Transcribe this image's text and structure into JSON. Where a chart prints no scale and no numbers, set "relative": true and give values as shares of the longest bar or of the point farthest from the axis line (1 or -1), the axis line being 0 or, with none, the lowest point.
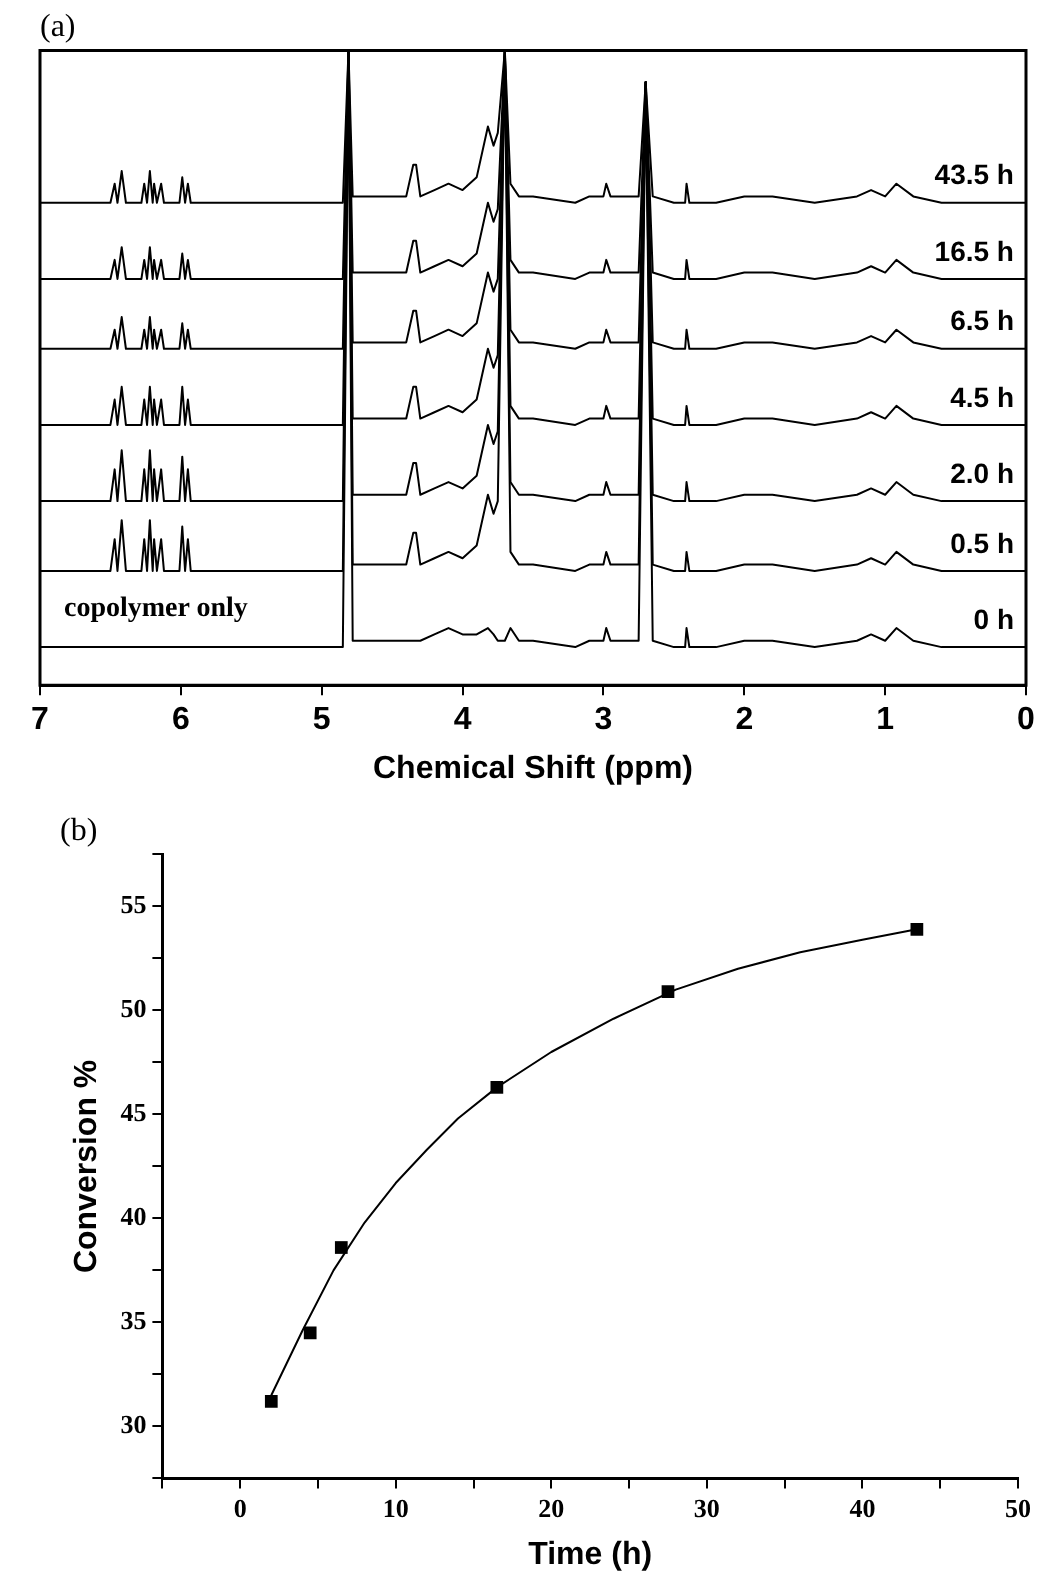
{
  "chart_data": [
    {
      "type": "line",
      "title": "(a)",
      "xlabel": "Chemical Shift (ppm)",
      "relative": true,
      "marker": "none",
      "tick_labels": "x",
      "xlim": [
        7,
        0
      ],
      "xticks": [
        7,
        6,
        5,
        4,
        3,
        2,
        1,
        0
      ],
      "x": [
        7,
        6.5,
        6.47,
        6.45,
        6.42,
        6.39,
        6.28,
        6.26,
        6.24,
        6.22,
        6.2,
        6.19,
        6.17,
        6.14,
        6.12,
        6.01,
        5.99,
        5.97,
        5.95,
        5.93,
        4.85,
        4.81,
        4.78,
        4.5,
        4.4,
        4.35,
        4.33,
        4.3,
        4.2,
        4.1,
        4.0,
        3.9,
        3.82,
        3.78,
        3.75,
        3.7,
        3.66,
        3.6,
        3.5,
        3.2,
        3.1,
        3.0,
        2.98,
        2.95,
        2.75,
        2.7,
        2.65,
        2.5,
        2.42,
        2.41,
        2.39,
        2.2,
        2.0,
        1.8,
        1.5,
        1.2,
        1.1,
        1.0,
        0.92,
        0.8,
        0.6,
        0
      ],
      "annotations": [
        "copolymer only"
      ],
      "series": [
        {
          "name": "43.5 h",
          "color": "#000000",
          "values": [
            0.76,
            0.76,
            0.79,
            0.76,
            0.81,
            0.76,
            0.76,
            0.79,
            0.76,
            0.81,
            0.76,
            0.79,
            0.76,
            0.79,
            0.76,
            0.76,
            0.8,
            0.76,
            0.79,
            0.76,
            0.76,
            1,
            0.77,
            0.77,
            0.77,
            0.82,
            0.82,
            0.77,
            0.78,
            0.79,
            0.78,
            0.8,
            0.88,
            0.85,
            0.87,
            1,
            0.79,
            0.77,
            0.77,
            0.76,
            0.77,
            0.77,
            0.79,
            0.77,
            0.77,
            0.95,
            0.77,
            0.76,
            0.76,
            0.79,
            0.76,
            0.76,
            0.77,
            0.77,
            0.76,
            0.77,
            0.78,
            0.77,
            0.79,
            0.77,
            0.76,
            0.76
          ]
        },
        {
          "name": "16.5 h",
          "color": "#000000",
          "values": [
            0.64,
            0.64,
            0.67,
            0.64,
            0.69,
            0.64,
            0.64,
            0.67,
            0.64,
            0.69,
            0.64,
            0.67,
            0.64,
            0.67,
            0.64,
            0.64,
            0.68,
            0.64,
            0.67,
            0.64,
            0.64,
            1,
            0.65,
            0.65,
            0.65,
            0.7,
            0.7,
            0.65,
            0.66,
            0.67,
            0.66,
            0.68,
            0.76,
            0.73,
            0.75,
            1,
            0.67,
            0.65,
            0.65,
            0.64,
            0.65,
            0.65,
            0.67,
            0.65,
            0.65,
            0.95,
            0.65,
            0.64,
            0.64,
            0.67,
            0.64,
            0.64,
            0.65,
            0.65,
            0.64,
            0.65,
            0.66,
            0.65,
            0.67,
            0.65,
            0.64,
            0.64
          ]
        },
        {
          "name": "6.5 h",
          "color": "#000000",
          "values": [
            0.53,
            0.53,
            0.56,
            0.53,
            0.58,
            0.53,
            0.53,
            0.56,
            0.53,
            0.58,
            0.53,
            0.56,
            0.53,
            0.56,
            0.53,
            0.53,
            0.57,
            0.53,
            0.56,
            0.53,
            0.53,
            1,
            0.54,
            0.54,
            0.54,
            0.59,
            0.59,
            0.54,
            0.55,
            0.56,
            0.55,
            0.57,
            0.65,
            0.62,
            0.64,
            1,
            0.56,
            0.54,
            0.54,
            0.53,
            0.54,
            0.54,
            0.56,
            0.54,
            0.54,
            0.95,
            0.54,
            0.53,
            0.53,
            0.56,
            0.53,
            0.53,
            0.54,
            0.54,
            0.53,
            0.54,
            0.55,
            0.54,
            0.56,
            0.54,
            0.53,
            0.53
          ]
        },
        {
          "name": "4.5 h",
          "color": "#000000",
          "values": [
            0.41,
            0.41,
            0.45,
            0.41,
            0.47,
            0.41,
            0.41,
            0.45,
            0.41,
            0.47,
            0.41,
            0.45,
            0.41,
            0.45,
            0.41,
            0.41,
            0.47,
            0.41,
            0.45,
            0.41,
            0.41,
            1,
            0.42,
            0.42,
            0.42,
            0.47,
            0.47,
            0.42,
            0.43,
            0.44,
            0.43,
            0.45,
            0.53,
            0.5,
            0.52,
            1,
            0.44,
            0.42,
            0.42,
            0.41,
            0.42,
            0.42,
            0.44,
            0.42,
            0.42,
            0.95,
            0.42,
            0.41,
            0.41,
            0.44,
            0.41,
            0.41,
            0.42,
            0.42,
            0.41,
            0.42,
            0.43,
            0.42,
            0.44,
            0.42,
            0.41,
            0.41
          ]
        },
        {
          "name": "2.0 h",
          "color": "#000000",
          "values": [
            0.29,
            0.29,
            0.34,
            0.29,
            0.37,
            0.29,
            0.29,
            0.34,
            0.29,
            0.37,
            0.29,
            0.34,
            0.29,
            0.34,
            0.29,
            0.29,
            0.36,
            0.29,
            0.34,
            0.29,
            0.29,
            1,
            0.3,
            0.3,
            0.3,
            0.35,
            0.35,
            0.3,
            0.31,
            0.32,
            0.31,
            0.33,
            0.41,
            0.38,
            0.4,
            1,
            0.32,
            0.3,
            0.3,
            0.29,
            0.3,
            0.3,
            0.32,
            0.3,
            0.3,
            0.95,
            0.3,
            0.29,
            0.29,
            0.32,
            0.29,
            0.29,
            0.3,
            0.3,
            0.29,
            0.3,
            0.31,
            0.3,
            0.32,
            0.3,
            0.29,
            0.29
          ]
        },
        {
          "name": "0.5 h",
          "color": "#000000",
          "values": [
            0.18,
            0.18,
            0.23,
            0.18,
            0.26,
            0.18,
            0.18,
            0.23,
            0.18,
            0.26,
            0.18,
            0.23,
            0.18,
            0.23,
            0.18,
            0.18,
            0.25,
            0.18,
            0.23,
            0.18,
            0.18,
            1,
            0.19,
            0.19,
            0.19,
            0.24,
            0.24,
            0.19,
            0.2,
            0.21,
            0.2,
            0.22,
            0.3,
            0.27,
            0.29,
            1,
            0.21,
            0.19,
            0.19,
            0.18,
            0.19,
            0.19,
            0.21,
            0.19,
            0.19,
            0.95,
            0.19,
            0.18,
            0.18,
            0.21,
            0.18,
            0.18,
            0.19,
            0.19,
            0.18,
            0.19,
            0.2,
            0.19,
            0.21,
            0.19,
            0.18,
            0.18
          ]
        },
        {
          "name": "0 h",
          "color": "#000000",
          "values": [
            0.06,
            0.06,
            0.06,
            0.06,
            0.06,
            0.06,
            0.06,
            0.06,
            0.06,
            0.06,
            0.06,
            0.06,
            0.06,
            0.06,
            0.06,
            0.06,
            0.06,
            0.06,
            0.06,
            0.06,
            0.06,
            1,
            0.07,
            0.07,
            0.07,
            0.07,
            0.07,
            0.07,
            0.08,
            0.09,
            0.08,
            0.08,
            0.09,
            0.08,
            0.07,
            0.07,
            0.09,
            0.07,
            0.07,
            0.06,
            0.07,
            0.07,
            0.09,
            0.07,
            0.07,
            0.95,
            0.07,
            0.06,
            0.06,
            0.09,
            0.06,
            0.06,
            0.07,
            0.07,
            0.06,
            0.07,
            0.08,
            0.07,
            0.09,
            0.07,
            0.06,
            0.06
          ]
        }
      ]
    },
    {
      "type": "scatter",
      "title": "(b)",
      "xlabel": "Time (h)",
      "ylabel": "Conversion %",
      "xlim": [
        -5,
        50
      ],
      "ylim": [
        27.5,
        57.5
      ],
      "xticks": [
        {
          "value": -5,
          "label": null
        },
        0,
        {
          "value": 5,
          "label": null
        },
        10,
        {
          "value": 15,
          "label": null
        },
        20,
        {
          "value": 25,
          "label": null
        },
        30,
        {
          "value": 35,
          "label": null
        },
        40,
        {
          "value": 45,
          "label": null
        },
        50
      ],
      "yticks": [
        {
          "value": 27.5,
          "label": null
        },
        30,
        {
          "value": 32.5,
          "label": null
        },
        35,
        {
          "value": 37.5,
          "label": null
        },
        40,
        {
          "value": 42.5,
          "label": null
        },
        45,
        {
          "value": 47.5,
          "label": null
        },
        50,
        {
          "value": 52.5,
          "label": null
        },
        55,
        {
          "value": 57.5,
          "label": null
        }
      ],
      "series": [
        {
          "marker": "square",
          "color": "#000000",
          "x": [
            2,
            4.5,
            6.5,
            16.5,
            27.5,
            43.5
          ],
          "values": [
            31.2,
            34.5,
            38.6,
            46.3,
            50.9,
            53.9
          ]
        },
        {
          "type": "line",
          "marker": "none",
          "color": "#000000",
          "x": [
            2,
            4,
            6,
            8,
            10,
            12,
            14,
            16.5,
            20,
            24,
            28,
            32,
            36,
            40,
            43.5
          ],
          "values": [
            31.5,
            34.6,
            37.5,
            39.8,
            41.7,
            43.3,
            44.8,
            46.3,
            48,
            49.6,
            51,
            52,
            52.8,
            53.4,
            53.9
          ]
        }
      ]
    }
  ]
}
